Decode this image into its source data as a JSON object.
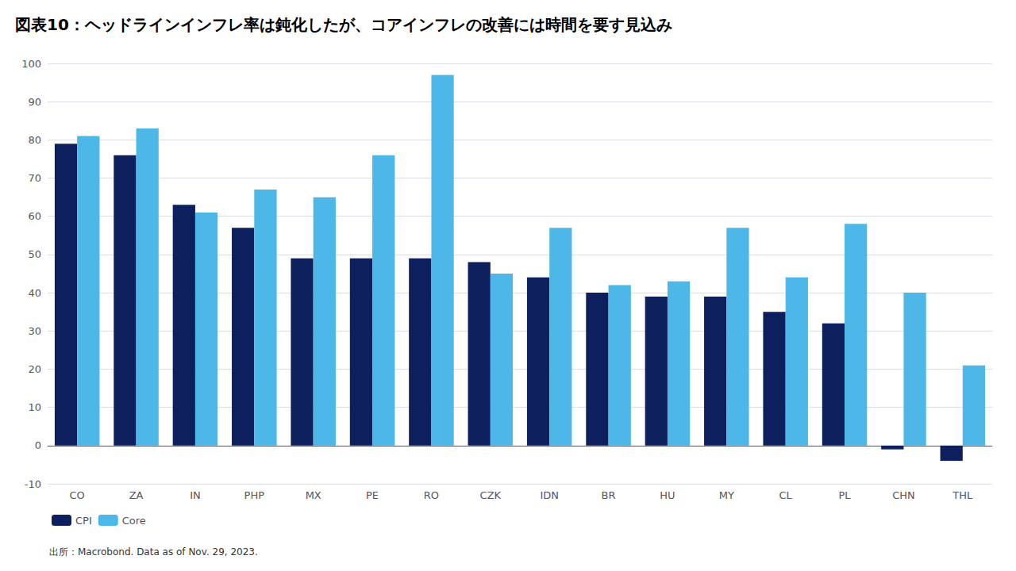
{
  "chart_data": {
    "type": "bar",
    "title": "図表10：ヘッドラインインフレ率は鈍化したが、コアインフレの改善には時間を要す見込み",
    "categories": [
      "CO",
      "ZA",
      "IN",
      "PHP",
      "MX",
      "PE",
      "RO",
      "CZK",
      "IDN",
      "BR",
      "HU",
      "MY",
      "CL",
      "PL",
      "CHN",
      "THL"
    ],
    "series": [
      {
        "name": "CPI",
        "color": "#0d1f5c",
        "values": [
          79,
          76,
          63,
          57,
          49,
          49,
          49,
          48,
          44,
          40,
          39,
          39,
          35,
          32,
          -1,
          -4
        ]
      },
      {
        "name": "Core",
        "color": "#4db8e8",
        "values": [
          81,
          83,
          61,
          67,
          65,
          76,
          97,
          45,
          57,
          42,
          43,
          57,
          44,
          58,
          40,
          21
        ]
      }
    ],
    "ylim": [
      -10,
      100
    ],
    "yticks": [
      -10,
      0,
      10,
      20,
      30,
      40,
      50,
      60,
      70,
      80,
      90,
      100
    ],
    "grid": true,
    "legend": "bottom",
    "annotations": [
      "出所：Macrobond. Data as of Nov. 29, 2023."
    ]
  }
}
